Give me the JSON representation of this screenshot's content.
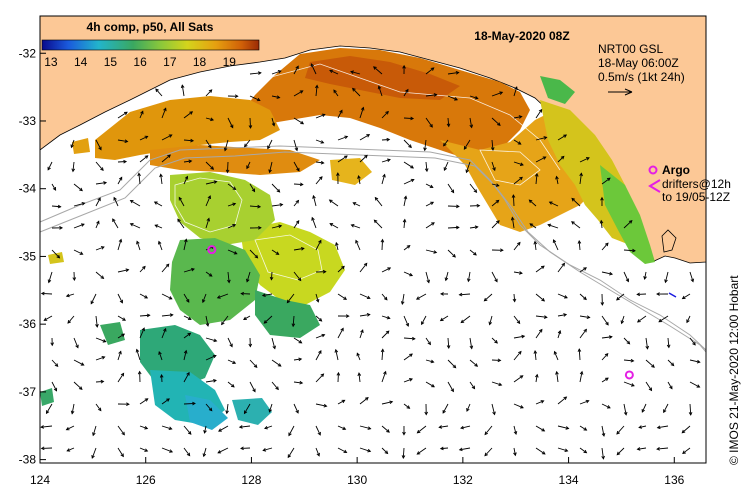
{
  "title": "18-May-2020 08Z",
  "colorbar": {
    "caption": "4h comp, p50, All Sats",
    "ticks": [
      "13",
      "14",
      "15",
      "16",
      "17",
      "18",
      "19"
    ],
    "min": 12.7,
    "max": 20.0
  },
  "info": {
    "line1": "NRT00 GSL",
    "line2": "18-May 06:00Z",
    "line3": "0.5m/s (1kt 24h)"
  },
  "legend": {
    "argo_label": "Argo",
    "drifters_line1": "drifters@12h",
    "drifters_line2": "to 19/05-12Z"
  },
  "credit": "© IMOS 21-May-2020 12:00 Hobart",
  "axes": {
    "x_ticks": [
      "124",
      "126",
      "128",
      "130",
      "132",
      "134",
      "136"
    ],
    "y_ticks": [
      "-32",
      "-33",
      "-34",
      "-35",
      "-36",
      "-37",
      "-38"
    ],
    "xlim": [
      124,
      136.6
    ],
    "ylim": [
      -38.05,
      -31.45
    ]
  },
  "colors": {
    "land": "#fcc896",
    "argo": "#e41ee4",
    "bathy": "#a8a8a8",
    "arrow": "#000000",
    "drifter": "#1a1ae0"
  },
  "argo_floats": [
    {
      "lon": 127.25,
      "lat": -34.9
    },
    {
      "lon": 135.15,
      "lat": -36.75
    }
  ]
}
